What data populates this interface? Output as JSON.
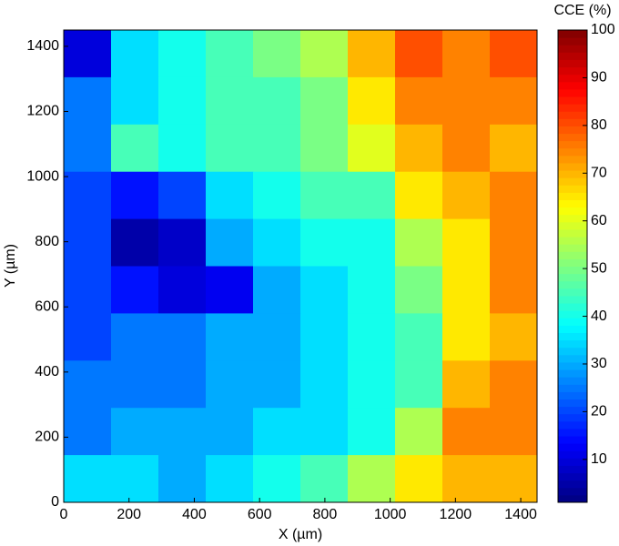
{
  "chart_data": {
    "type": "heatmap",
    "colorbar_label": "CCE (%)",
    "xlabel": "X (µm)",
    "ylabel": "Y (µm)",
    "colormap": "jet",
    "x": [
      72.5,
      217.5,
      362.5,
      507.5,
      652.5,
      797.5,
      942.5,
      1087.5,
      1232.5,
      1377.5
    ],
    "y": [
      1377.5,
      1232.5,
      1087.5,
      942.5,
      797.5,
      652.5,
      507.5,
      362.5,
      217.5,
      72.5
    ],
    "z": [
      [
        10,
        35,
        40,
        45,
        50,
        55,
        70,
        80,
        75,
        80
      ],
      [
        25,
        35,
        40,
        45,
        45,
        50,
        65,
        75,
        75,
        75
      ],
      [
        25,
        45,
        40,
        45,
        45,
        50,
        60,
        70,
        75,
        70
      ],
      [
        20,
        15,
        20,
        35,
        40,
        45,
        45,
        65,
        70,
        75
      ],
      [
        20,
        5,
        8,
        30,
        35,
        40,
        40,
        55,
        65,
        75
      ],
      [
        20,
        15,
        10,
        12,
        30,
        35,
        40,
        50,
        65,
        75
      ],
      [
        20,
        25,
        25,
        30,
        30,
        35,
        40,
        45,
        65,
        70
      ],
      [
        25,
        25,
        25,
        30,
        30,
        35,
        40,
        45,
        70,
        75
      ],
      [
        25,
        30,
        30,
        30,
        35,
        35,
        40,
        55,
        75,
        75
      ],
      [
        35,
        35,
        30,
        35,
        40,
        45,
        55,
        65,
        70,
        70
      ]
    ],
    "xlim": [
      0,
      1450
    ],
    "xticks": [
      0,
      200,
      400,
      600,
      800,
      1000,
      1200,
      1400
    ],
    "ylim": [
      0,
      1450
    ],
    "yticks": [
      0,
      200,
      400,
      600,
      800,
      1000,
      1200,
      1400
    ],
    "clim": [
      1,
      100
    ],
    "cticks": [
      10,
      20,
      30,
      40,
      50,
      60,
      70,
      80,
      90,
      100
    ]
  }
}
